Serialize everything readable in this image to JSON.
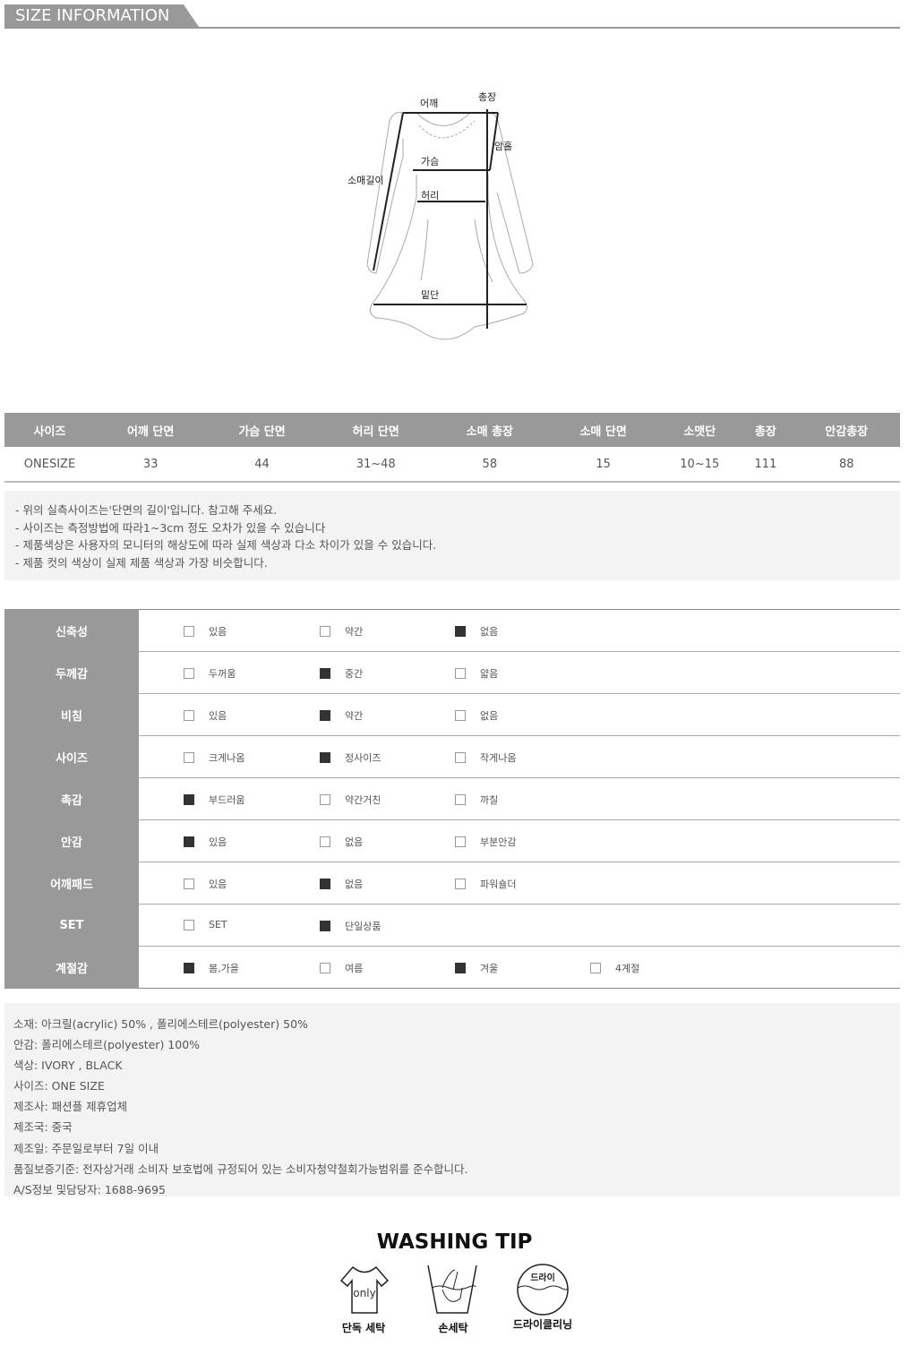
{
  "header": {
    "title": "SIZE INFORMATION"
  },
  "diagram": {
    "labels": {
      "shoulder": "어깨",
      "length": "총장",
      "armhole": "암홀",
      "chest": "가슴",
      "sleeve": "소매길이",
      "waist": "허리",
      "hem": "밑단"
    }
  },
  "size_table": {
    "headers": [
      "사이즈",
      "어깨 단면",
      "가슴 단면",
      "허리 단면",
      "소매 총장",
      "소매 단면",
      "소맷단",
      "총장",
      "안감총장"
    ],
    "rows": [
      [
        "ONESIZE",
        "33",
        "44",
        "31~48",
        "58",
        "15",
        "10~15",
        "111",
        "88"
      ]
    ]
  },
  "notes": [
    "- 위의 실측사이즈는'단면의 길이'입니다. 참고해 주세요.",
    "- 사이즈는 측정방법에 따라1~3cm 정도 오차가 있을 수 있습니다",
    "- 제품색상은 사용자의 모니터의 해상도에 따라 실제 색상과 다소 차이가 있을 수 있습니다.",
    "- 제품 컷의 색상이 실제 제품 색상과 가장 비슷합니다."
  ],
  "attributes": [
    {
      "label": "신축성",
      "options": [
        {
          "text": "있음",
          "checked": false
        },
        {
          "text": "약간",
          "checked": false
        },
        {
          "text": "없음",
          "checked": true
        }
      ]
    },
    {
      "label": "두께감",
      "options": [
        {
          "text": "두꺼움",
          "checked": false
        },
        {
          "text": "중간",
          "checked": true
        },
        {
          "text": "얇음",
          "checked": false
        }
      ]
    },
    {
      "label": "비침",
      "options": [
        {
          "text": "있음",
          "checked": false
        },
        {
          "text": "약간",
          "checked": true
        },
        {
          "text": "없음",
          "checked": false
        }
      ]
    },
    {
      "label": "사이즈",
      "options": [
        {
          "text": "크게나옴",
          "checked": false
        },
        {
          "text": "정사이즈",
          "checked": true
        },
        {
          "text": "작게나옴",
          "checked": false
        }
      ]
    },
    {
      "label": "촉감",
      "options": [
        {
          "text": "부드러움",
          "checked": true
        },
        {
          "text": "약간거친",
          "checked": false
        },
        {
          "text": "까칠",
          "checked": false
        }
      ]
    },
    {
      "label": "안감",
      "options": [
        {
          "text": "있음",
          "checked": true
        },
        {
          "text": "없음",
          "checked": false
        },
        {
          "text": "부분안감",
          "checked": false
        }
      ]
    },
    {
      "label": "어깨패드",
      "options": [
        {
          "text": "있음",
          "checked": false
        },
        {
          "text": "없음",
          "checked": true
        },
        {
          "text": "파워숄더",
          "checked": false
        }
      ]
    },
    {
      "label": "SET",
      "options": [
        {
          "text": "SET",
          "checked": false
        },
        {
          "text": "단일상품",
          "checked": true
        }
      ]
    },
    {
      "label": "계절감",
      "options": [
        {
          "text": "봄,가을",
          "checked": true
        },
        {
          "text": "여름",
          "checked": false
        },
        {
          "text": "겨울",
          "checked": true
        },
        {
          "text": "4계절",
          "checked": false
        }
      ]
    }
  ],
  "info": [
    "소재: 아크릴(acrylic) 50% , 폴리에스테르(polyester) 50%",
    "안감: 폴리에스테르(polyester) 100%",
    "색상: IVORY , BLACK",
    "사이즈: ONE SIZE",
    "제조사: 패션플 제휴업체",
    "제조국: 중국",
    "제조일: 주문일로부터 7일 이내",
    "품질보증기준: 전자상거래 소비자 보호법에 규정되어 있는 소비자청약철회가능범위를 준수합니다.",
    "A/S정보 및담당자: 1688-9695"
  ],
  "washing": {
    "title": "WASHING TIP",
    "items": [
      {
        "caption": "단독 세탁",
        "icon_text": "only",
        "icon": "tshirt-icon"
      },
      {
        "caption": "손세탁",
        "icon": "hand-wash-icon"
      },
      {
        "caption": "드라이클리닝",
        "icon_text": "드라이",
        "icon": "dry-clean-icon"
      }
    ]
  }
}
